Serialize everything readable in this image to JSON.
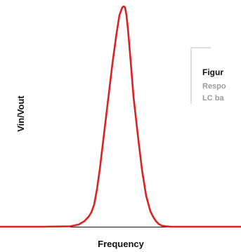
{
  "chart_data": {
    "type": "line",
    "xlabel": "Frequency",
    "ylabel": "Vin/Vout",
    "annotation": {
      "title": "Figur",
      "lines": [
        "Respo",
        "LC ba"
      ]
    },
    "series": [
      {
        "color": "#e02020",
        "x": [
          0,
          60,
          100,
          112,
          120,
          126,
          130,
          134,
          138,
          142,
          148,
          154,
          160,
          166,
          170,
          174,
          176,
          178,
          180,
          182,
          186,
          190,
          196,
          202,
          208,
          214,
          218,
          222,
          226,
          230,
          236,
          244,
          256,
          300,
          343
        ],
        "y": [
          0,
          0,
          0.002,
          0.01,
          0.025,
          0.045,
          0.065,
          0.1,
          0.17,
          0.26,
          0.42,
          0.58,
          0.74,
          0.88,
          0.96,
          0.995,
          1.0,
          0.995,
          0.96,
          0.9,
          0.75,
          0.59,
          0.42,
          0.26,
          0.14,
          0.07,
          0.045,
          0.025,
          0.012,
          0.005,
          0.002,
          0,
          0,
          0,
          0
        ]
      }
    ],
    "baseline_color": "#111111",
    "grid": false,
    "legend": "none"
  }
}
